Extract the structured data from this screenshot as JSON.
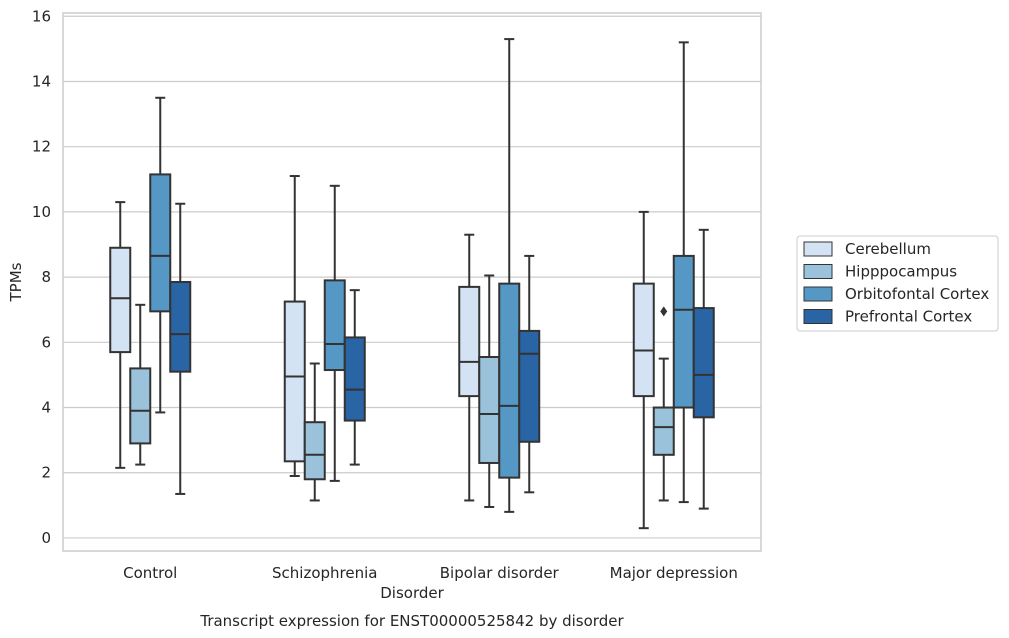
{
  "chart_data": {
    "type": "box",
    "xlabel": "Disorder",
    "ylabel": "TPMs",
    "caption": "Transcript expression for ENST00000525842 by disorder",
    "ylim": [
      -0.4,
      16.1
    ],
    "yticks": [
      "0",
      "2",
      "4",
      "6",
      "8",
      "10",
      "12",
      "14",
      "16"
    ],
    "grid": true,
    "legend_position": "right",
    "categories": [
      "Control",
      "Schizophrenia",
      "Bipolar disorder",
      "Major depression"
    ],
    "series": [
      {
        "name": "Cerebellum",
        "color": "#d3e3f3",
        "boxes": [
          {
            "whislo": 2.15,
            "q1": 5.7,
            "med": 7.35,
            "q3": 8.9,
            "whishi": 10.3,
            "fliers": []
          },
          {
            "whislo": 1.9,
            "q1": 2.35,
            "med": 4.95,
            "q3": 7.25,
            "whishi": 11.1,
            "fliers": []
          },
          {
            "whislo": 1.15,
            "q1": 4.35,
            "med": 5.4,
            "q3": 7.7,
            "whishi": 9.3,
            "fliers": []
          },
          {
            "whislo": 0.3,
            "q1": 4.35,
            "med": 5.75,
            "q3": 7.8,
            "whishi": 10.0,
            "fliers": []
          }
        ]
      },
      {
        "name": "Hipppocampus",
        "color": "#9ac2db",
        "boxes": [
          {
            "whislo": 2.25,
            "q1": 2.9,
            "med": 3.9,
            "q3": 5.2,
            "whishi": 7.15,
            "fliers": []
          },
          {
            "whislo": 1.15,
            "q1": 1.8,
            "med": 2.55,
            "q3": 3.55,
            "whishi": 5.35,
            "fliers": []
          },
          {
            "whislo": 0.95,
            "q1": 2.3,
            "med": 3.8,
            "q3": 5.55,
            "whishi": 8.05,
            "fliers": []
          },
          {
            "whislo": 1.15,
            "q1": 2.55,
            "med": 3.4,
            "q3": 4.0,
            "whishi": 5.5,
            "fliers": [
              6.95
            ]
          }
        ]
      },
      {
        "name": "Orbitofontal Cortex",
        "color": "#5597c5",
        "boxes": [
          {
            "whislo": 3.85,
            "q1": 6.95,
            "med": 8.65,
            "q3": 11.15,
            "whishi": 13.5,
            "fliers": []
          },
          {
            "whislo": 1.75,
            "q1": 5.15,
            "med": 5.95,
            "q3": 7.9,
            "whishi": 10.8,
            "fliers": []
          },
          {
            "whislo": 0.8,
            "q1": 1.85,
            "med": 4.05,
            "q3": 7.8,
            "whishi": 15.3,
            "fliers": []
          },
          {
            "whislo": 1.1,
            "q1": 4.0,
            "med": 7.0,
            "q3": 8.65,
            "whishi": 15.2,
            "fliers": []
          }
        ]
      },
      {
        "name": "Prefrontal Cortex",
        "color": "#2965a5",
        "boxes": [
          {
            "whislo": 1.35,
            "q1": 5.1,
            "med": 6.25,
            "q3": 7.85,
            "whishi": 10.25,
            "fliers": []
          },
          {
            "whislo": 2.25,
            "q1": 3.6,
            "med": 4.55,
            "q3": 6.15,
            "whishi": 7.6,
            "fliers": []
          },
          {
            "whislo": 1.4,
            "q1": 2.95,
            "med": 5.65,
            "q3": 6.35,
            "whishi": 8.65,
            "fliers": []
          },
          {
            "whislo": 0.9,
            "q1": 3.7,
            "med": 5.0,
            "q3": 7.05,
            "whishi": 9.45,
            "fliers": []
          }
        ]
      }
    ]
  }
}
